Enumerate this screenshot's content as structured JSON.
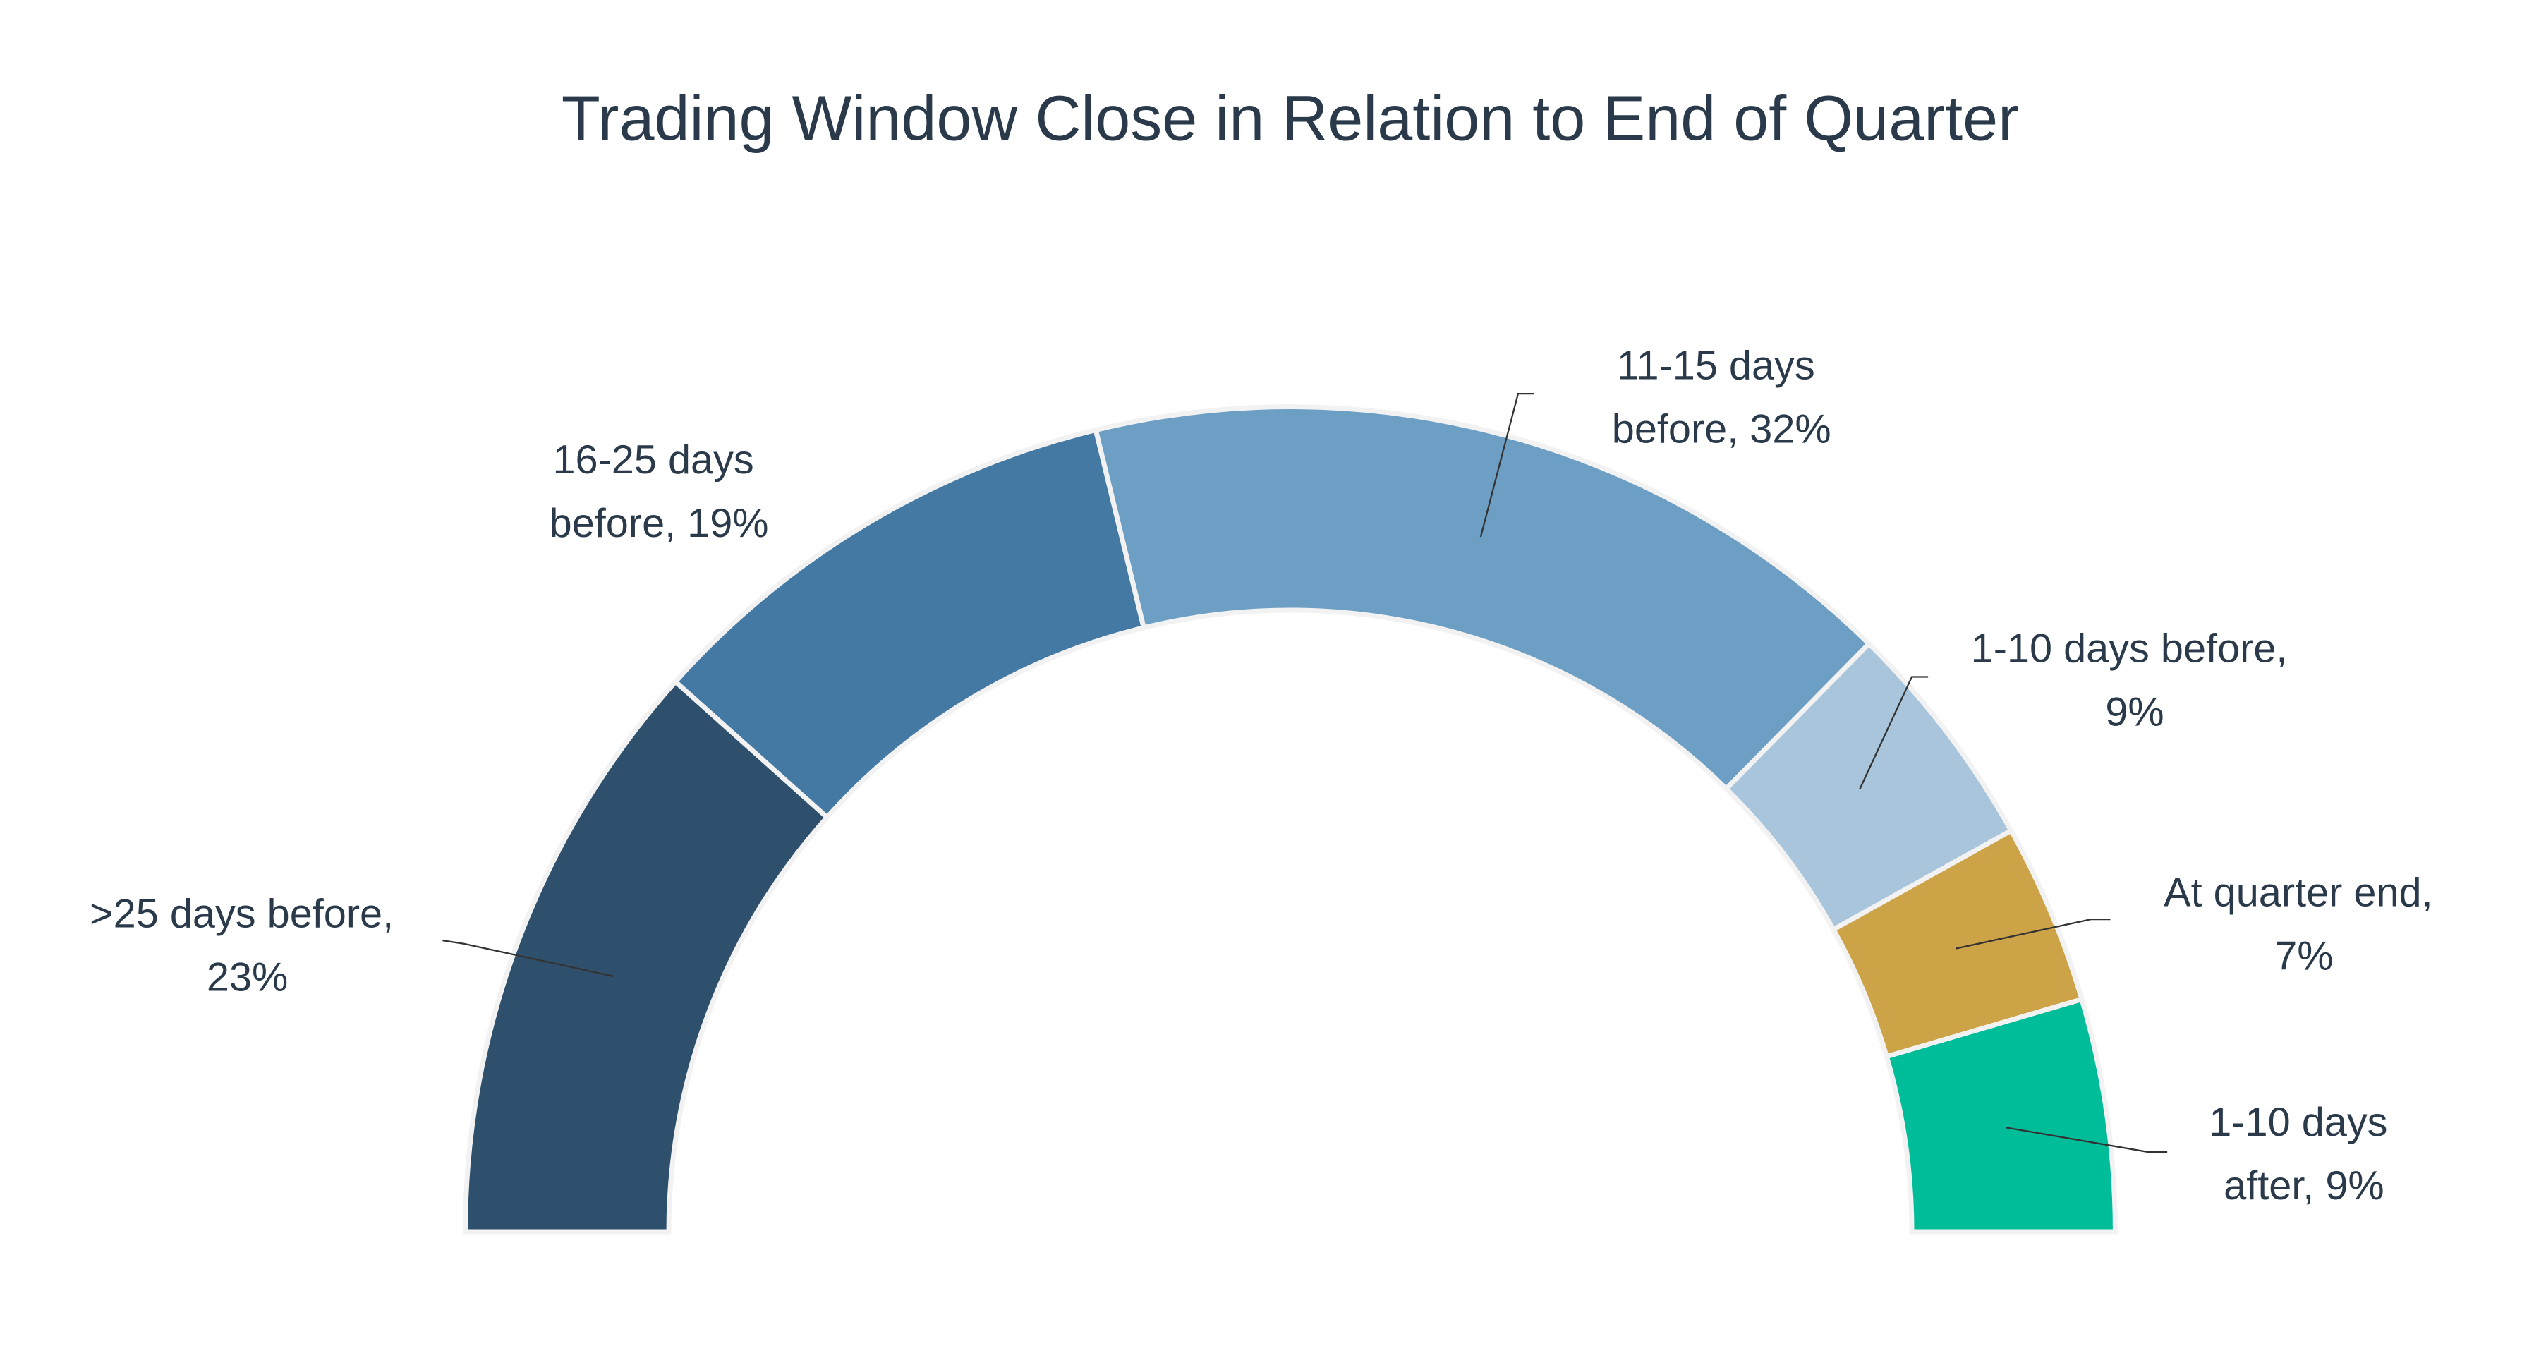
{
  "chart_data": {
    "type": "half-donut",
    "title": "Trading Window Close in Relation to End of Quarter",
    "values": [
      23,
      19,
      32,
      9,
      7,
      9
    ],
    "value_labels": [
      ">25 days before, 23%",
      "16-25 days before, 19%",
      "11-15 days before, 32%",
      "1-10 days before, 9%",
      "At quarter end, 7%",
      "1-10 days after, 9%"
    ],
    "colors": [
      "#2e506c",
      "#4479a3",
      "#6d9fc5",
      "#a8c5dc",
      "#cda348",
      "#00bd9a"
    ]
  }
}
